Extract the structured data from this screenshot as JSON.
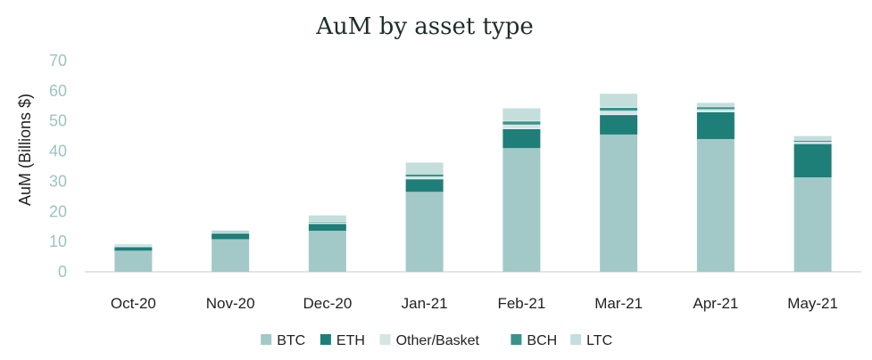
{
  "chart_data": {
    "type": "bar",
    "stacked": true,
    "title": "AuM by asset type",
    "xlabel": "",
    "ylabel": "AuM (Billions $)",
    "ylim": [
      0,
      70
    ],
    "yticks": [
      "0",
      "10",
      "20",
      "30",
      "40",
      "50",
      "60",
      "70"
    ],
    "grid": false,
    "legend_position": "bottom",
    "categories": [
      "Oct-20",
      "Nov-20",
      "Dec-20",
      "Jan-21",
      "Feb-21",
      "Mar-21",
      "Apr-21",
      "May-21"
    ],
    "series": [
      {
        "name": "BTC",
        "color": "#a2c9c7",
        "values": [
          7.0,
          10.8,
          13.6,
          26.5,
          41.0,
          45.5,
          44.0,
          31.3
        ]
      },
      {
        "name": "ETH",
        "color": "#1e7e78",
        "values": [
          1.3,
          2.0,
          2.4,
          4.3,
          6.4,
          6.6,
          9.0,
          11.2
        ]
      },
      {
        "name": "Other/Basket",
        "color": "#d4e6e4",
        "values": [
          0.3,
          0.2,
          0.3,
          0.8,
          1.4,
          1.3,
          0.9,
          0.6
        ]
      },
      {
        "name": "BCH",
        "color": "#3a928b",
        "values": [
          0.2,
          0.3,
          0.3,
          0.8,
          1.2,
          1.1,
          0.8,
          0.5
        ]
      },
      {
        "name": "LTC",
        "color": "#c4dedc",
        "values": [
          0.3,
          0.4,
          2.1,
          3.8,
          4.2,
          4.5,
          1.3,
          1.4
        ]
      }
    ]
  }
}
